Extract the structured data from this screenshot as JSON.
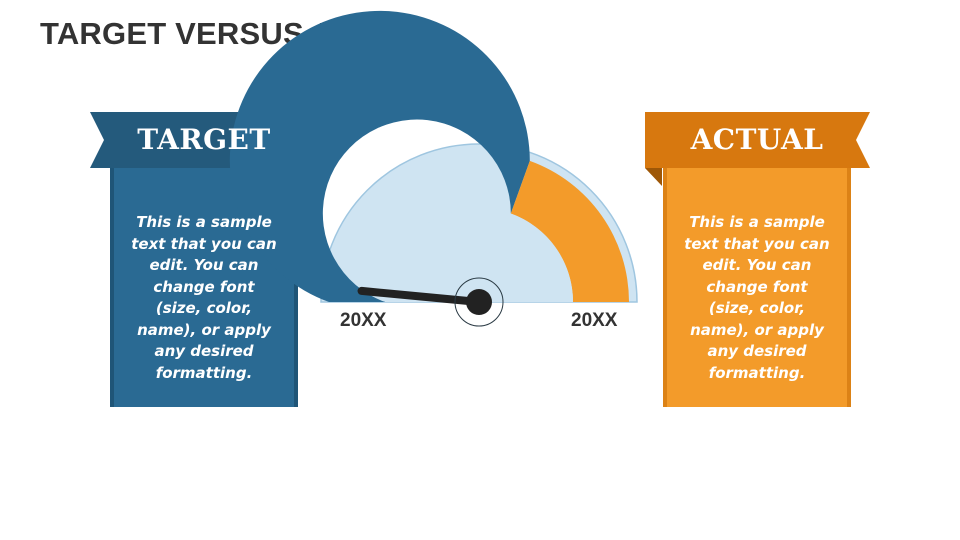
{
  "title": "TARGET VERSUS ACTUAL",
  "target": {
    "label": "TARGET",
    "text": "This is a sample text that you can edit. You can change font (size, color, name), or apply any desired formatting.",
    "color": "#2a6a93",
    "ribbon_color": "#245a7c"
  },
  "actual": {
    "label": "ACTUAL",
    "text": "This is a sample text that you can edit. You can change font (size, color, name), or apply any desired formatting.",
    "color": "#f39b2a",
    "ribbon_color": "#d7780f"
  },
  "gauge": {
    "left_label": "20XX",
    "right_label": "20XX",
    "target_fraction": 0.61,
    "needle_fraction": 0.03,
    "colors": {
      "outer_ring": "#cfe4f2",
      "target_arc": "#2a6a93",
      "actual_arc": "#f39b2a",
      "inner": "#cfe4f2",
      "needle": "#222222"
    }
  }
}
